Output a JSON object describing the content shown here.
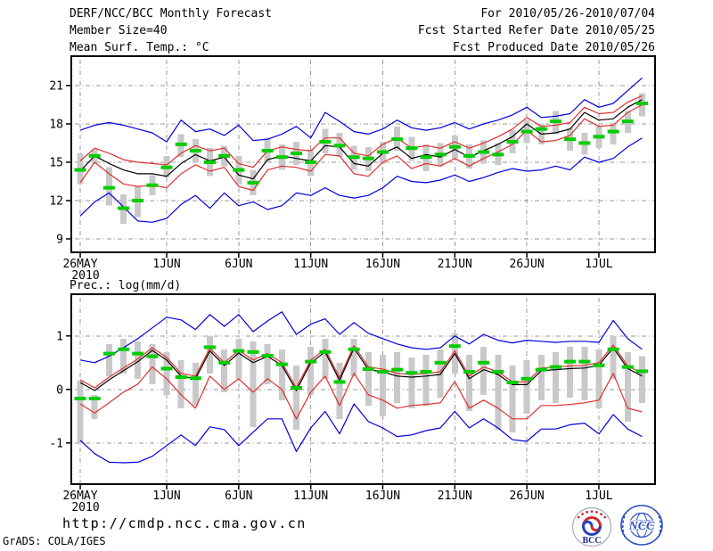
{
  "header": {
    "title": "DERF/NCC/BCC Monthly Forecast",
    "member_size": "Member Size=40",
    "for_period": "For 2010/05/26-2010/07/04",
    "fcst_started": "Fcst Started Refer Date 2010/05/25",
    "fcst_produced": "Fcst Produced Date 2010/05/26"
  },
  "footer": {
    "url": "http://cmdp.ncc.cma.gov.cn",
    "credit": "GrADS: COLA/IGES",
    "logos": {
      "bcc": "BCC",
      "ncc": "NCC"
    }
  },
  "palette": {
    "minmax": "#0000dd",
    "spread": "#e03030",
    "mean": "#000000",
    "obs_dash": "#00cc00",
    "member_bar": "#c9c9c9",
    "grid": "#999999",
    "frame": "#000000"
  },
  "chart_data": [
    {
      "id": "temp",
      "type": "line",
      "title": "Mean Surf. Temp.: °C",
      "start_date": "2010/05/26",
      "end_date": "2010/07/04",
      "n_points": 40,
      "grid": true,
      "xlim": [
        -0.62,
        39.9
      ],
      "ylim": [
        7.95,
        23.3
      ],
      "x_ticks": [
        {
          "day": 0,
          "label": "26MAY",
          "sublabel": "2010"
        },
        {
          "day": 6,
          "label": "1JUN"
        },
        {
          "day": 11,
          "label": "6JUN"
        },
        {
          "day": 16,
          "label": "11JUN"
        },
        {
          "day": 21,
          "label": "16JUN"
        },
        {
          "day": 26,
          "label": "21JUN"
        },
        {
          "day": 31,
          "label": "26JUN"
        },
        {
          "day": 36,
          "label": "1JUL"
        }
      ],
      "y_ticks": [
        {
          "value": 9,
          "label": "9"
        },
        {
          "value": 12,
          "label": "12"
        },
        {
          "value": 15,
          "label": "15"
        },
        {
          "value": 18,
          "label": "18"
        },
        {
          "value": 21,
          "label": "21"
        }
      ],
      "series": [
        {
          "name": "member-spread-bars",
          "style": "bar",
          "color_key": "member_bar",
          "lo": [
            13.3,
            14.9,
            11.6,
            10.2,
            10.7,
            12.4,
            13.8,
            15.4,
            15.0,
            13.9,
            14.7,
            13.3,
            12.4,
            15.0,
            14.4,
            14.8,
            13.9,
            15.7,
            15.4,
            14.4,
            14.3,
            14.9,
            15.9,
            15.1,
            14.3,
            14.7,
            15.3,
            14.5,
            14.9,
            14.8,
            15.7,
            16.5,
            16.4,
            17.2,
            15.9,
            15.6,
            16.1,
            16.4,
            17.3,
            18.6
          ],
          "hi": [
            15.7,
            16.0,
            14.6,
            12.5,
            13.2,
            14.0,
            15.5,
            17.2,
            16.8,
            16.1,
            16.3,
            15.5,
            14.4,
            16.9,
            16.4,
            16.6,
            16.0,
            17.6,
            17.3,
            16.3,
            16.2,
            16.6,
            17.8,
            17.0,
            16.4,
            16.5,
            17.1,
            16.4,
            16.7,
            16.5,
            17.5,
            18.3,
            18.0,
            19.0,
            17.7,
            17.3,
            17.8,
            18.1,
            19.0,
            20.4
          ]
        },
        {
          "name": "ensemble-max",
          "style": "line",
          "color_key": "minmax",
          "values": [
            17.5,
            17.9,
            18.1,
            17.9,
            17.6,
            17.3,
            16.6,
            18.3,
            17.4,
            17.6,
            17.1,
            17.9,
            16.7,
            16.8,
            17.2,
            17.8,
            16.9,
            18.9,
            18.2,
            17.4,
            17.2,
            17.6,
            18.3,
            17.7,
            17.5,
            17.7,
            18.1,
            17.6,
            18.0,
            18.3,
            18.7,
            19.3,
            18.5,
            18.6,
            18.8,
            19.9,
            19.3,
            19.6,
            20.6,
            21.6
          ]
        },
        {
          "name": "ensemble-min",
          "style": "line",
          "color_key": "minmax",
          "values": [
            10.8,
            11.9,
            12.6,
            11.5,
            10.4,
            10.3,
            10.6,
            11.7,
            12.4,
            11.4,
            12.6,
            11.6,
            11.9,
            11.3,
            11.6,
            12.6,
            12.4,
            13.0,
            12.4,
            12.2,
            12.4,
            13.0,
            13.9,
            13.5,
            13.4,
            13.6,
            14.0,
            13.5,
            13.8,
            14.2,
            14.5,
            14.3,
            14.4,
            14.7,
            14.4,
            15.4,
            15.0,
            15.3,
            16.2,
            16.9
          ]
        },
        {
          "name": "spread-upper",
          "style": "line",
          "color_key": "spread",
          "values": [
            15.1,
            16.1,
            15.7,
            15.2,
            15.0,
            14.9,
            14.8,
            15.7,
            16.3,
            15.9,
            16.1,
            14.9,
            14.6,
            15.9,
            16.2,
            16.0,
            15.9,
            16.9,
            16.9,
            15.7,
            15.5,
            16.4,
            16.9,
            16.1,
            16.3,
            16.1,
            16.6,
            16.1,
            16.5,
            17.0,
            17.6,
            18.5,
            17.8,
            17.9,
            18.1,
            19.3,
            18.8,
            18.9,
            19.7,
            20.2
          ]
        },
        {
          "name": "spread-lower",
          "style": "line",
          "color_key": "spread",
          "values": [
            13.4,
            15.0,
            14.1,
            13.3,
            13.1,
            13.2,
            13.0,
            14.1,
            14.8,
            14.3,
            14.6,
            13.1,
            12.8,
            14.4,
            14.7,
            14.6,
            14.3,
            15.6,
            15.5,
            14.1,
            13.9,
            15.0,
            15.5,
            14.5,
            14.9,
            14.7,
            15.3,
            14.7,
            15.3,
            15.8,
            16.4,
            17.5,
            16.6,
            16.7,
            17.1,
            18.4,
            17.8,
            17.9,
            18.9,
            19.5
          ]
        },
        {
          "name": "ensemble-mean",
          "style": "line",
          "color_key": "mean",
          "values": [
            14.3,
            15.5,
            14.9,
            14.4,
            14.1,
            14.1,
            13.9,
            14.9,
            15.6,
            15.1,
            15.4,
            14.0,
            13.7,
            15.2,
            15.5,
            15.3,
            15.1,
            16.3,
            16.2,
            14.9,
            14.7,
            15.7,
            16.2,
            15.3,
            15.6,
            15.4,
            16.0,
            15.4,
            15.9,
            16.4,
            17.0,
            18.0,
            17.2,
            17.3,
            17.6,
            18.9,
            18.3,
            18.4,
            19.3,
            19.9
          ]
        },
        {
          "name": "obs-dashes",
          "style": "dash",
          "color_key": "obs_dash",
          "values": [
            14.4,
            15.5,
            13.0,
            11.4,
            12.0,
            13.2,
            14.6,
            16.4,
            15.9,
            15.0,
            15.5,
            14.4,
            13.4,
            15.9,
            15.4,
            15.7,
            15.0,
            16.6,
            16.3,
            15.4,
            15.3,
            15.8,
            16.8,
            16.1,
            15.4,
            15.6,
            16.2,
            15.5,
            15.8,
            15.6,
            16.6,
            17.4,
            17.6,
            18.2,
            16.8,
            16.5,
            17.0,
            17.4,
            18.2,
            19.6
          ]
        }
      ]
    },
    {
      "id": "prec",
      "type": "line",
      "title": "Prec.: log(mm/d)",
      "start_date": "2010/05/26",
      "end_date": "2010/07/04",
      "n_points": 40,
      "grid": true,
      "xlim": [
        -0.62,
        39.9
      ],
      "ylim": [
        -1.77,
        1.78
      ],
      "x_ticks": [
        {
          "day": 0,
          "label": "26MAY",
          "sublabel": "2010"
        },
        {
          "day": 6,
          "label": "1JUN"
        },
        {
          "day": 11,
          "label": "6JUN"
        },
        {
          "day": 16,
          "label": "11JUN"
        },
        {
          "day": 21,
          "label": "16JUN"
        },
        {
          "day": 26,
          "label": "21JUN"
        },
        {
          "day": 31,
          "label": "26JUN"
        },
        {
          "day": 36,
          "label": "1JUL"
        }
      ],
      "y_ticks": [
        {
          "value": -1,
          "label": "-1"
        },
        {
          "value": 0,
          "label": "0"
        },
        {
          "value": 1,
          "label": "1"
        }
      ],
      "series": [
        {
          "name": "member-spread-bars",
          "style": "bar",
          "color_key": "member_bar",
          "lo": [
            -1.0,
            -0.55,
            0.25,
            0.3,
            0.2,
            0.1,
            -0.1,
            -0.35,
            -0.3,
            0.3,
            -0.05,
            0.2,
            -0.7,
            0.1,
            -0.2,
            -0.75,
            -0.1,
            0.2,
            -0.55,
            0.25,
            -0.3,
            -0.5,
            -0.25,
            -0.35,
            -0.3,
            -0.15,
            0.3,
            -0.4,
            -0.1,
            -0.75,
            -0.8,
            -0.45,
            -0.2,
            -0.25,
            -0.15,
            -0.2,
            -0.35,
            0.2,
            -0.6,
            -0.25
          ],
          "hi": [
            0.17,
            -0.1,
            0.85,
            0.95,
            0.9,
            0.85,
            0.7,
            0.55,
            0.5,
            1.0,
            0.75,
            0.95,
            0.9,
            0.85,
            0.75,
            0.45,
            0.8,
            0.95,
            0.5,
            0.95,
            0.7,
            0.65,
            0.7,
            0.6,
            0.65,
            0.75,
            1.05,
            0.65,
            0.8,
            0.65,
            0.45,
            0.55,
            0.65,
            0.7,
            0.8,
            0.8,
            0.75,
            1.0,
            0.7,
            0.62
          ]
        },
        {
          "name": "ensemble-max",
          "style": "line",
          "color_key": "minmax",
          "values": [
            0.55,
            0.5,
            0.62,
            0.78,
            0.95,
            1.15,
            1.35,
            1.3,
            1.12,
            1.4,
            1.18,
            1.4,
            1.08,
            1.28,
            1.45,
            1.03,
            1.22,
            1.32,
            1.03,
            1.25,
            1.05,
            0.95,
            0.85,
            0.78,
            0.75,
            0.78,
            1.0,
            0.85,
            1.03,
            0.92,
            0.87,
            0.92,
            0.9,
            0.88,
            0.9,
            0.9,
            0.88,
            1.29,
            0.95,
            0.75
          ]
        },
        {
          "name": "ensemble-min",
          "style": "line",
          "color_key": "minmax",
          "values": [
            -0.95,
            -1.2,
            -1.36,
            -1.37,
            -1.36,
            -1.25,
            -1.05,
            -0.85,
            -1.05,
            -0.7,
            -0.75,
            -1.05,
            -0.8,
            -0.55,
            -0.55,
            -1.16,
            -0.72,
            -0.41,
            -0.83,
            -0.27,
            -0.6,
            -0.72,
            -0.88,
            -0.85,
            -0.77,
            -0.72,
            -0.41,
            -0.72,
            -0.55,
            -0.72,
            -0.94,
            -0.97,
            -0.74,
            -0.74,
            -0.66,
            -0.63,
            -0.83,
            -0.47,
            -0.74,
            -0.88
          ]
        },
        {
          "name": "spread-upper",
          "style": "line",
          "color_key": "spread",
          "values": [
            0.18,
            0.03,
            0.23,
            0.4,
            0.57,
            0.78,
            0.6,
            0.3,
            0.25,
            0.77,
            0.5,
            0.73,
            0.55,
            0.67,
            0.5,
            0.03,
            0.55,
            0.75,
            0.22,
            0.82,
            0.42,
            0.38,
            0.3,
            0.28,
            0.3,
            0.33,
            0.72,
            0.25,
            0.42,
            0.33,
            0.14,
            0.14,
            0.4,
            0.42,
            0.44,
            0.45,
            0.5,
            0.83,
            0.44,
            0.3
          ]
        },
        {
          "name": "spread-lower",
          "style": "line",
          "color_key": "spread",
          "values": [
            -0.27,
            -0.44,
            -0.25,
            -0.05,
            0.1,
            0.42,
            0.2,
            -0.1,
            -0.35,
            0.25,
            0.0,
            0.2,
            -0.05,
            0.2,
            0.0,
            -0.55,
            -0.05,
            0.25,
            -0.3,
            0.3,
            -0.1,
            -0.2,
            -0.35,
            -0.3,
            -0.28,
            -0.25,
            0.15,
            -0.35,
            -0.2,
            -0.35,
            -0.55,
            -0.55,
            -0.3,
            -0.3,
            -0.28,
            -0.25,
            -0.2,
            0.3,
            -0.35,
            -0.42
          ]
        },
        {
          "name": "ensemble-mean",
          "style": "line",
          "color_key": "mean",
          "values": [
            0.13,
            -0.02,
            0.18,
            0.35,
            0.52,
            0.73,
            0.55,
            0.25,
            0.2,
            0.72,
            0.45,
            0.68,
            0.5,
            0.62,
            0.45,
            -0.02,
            0.5,
            0.7,
            0.17,
            0.77,
            0.37,
            0.33,
            0.25,
            0.23,
            0.25,
            0.28,
            0.67,
            0.2,
            0.37,
            0.28,
            0.09,
            0.09,
            0.35,
            0.37,
            0.39,
            0.4,
            0.45,
            0.78,
            0.39,
            0.25
          ]
        },
        {
          "name": "obs-dashes",
          "style": "dash",
          "color_key": "obs_dash",
          "values": [
            -0.17,
            -0.17,
            0.67,
            0.75,
            0.67,
            0.62,
            0.39,
            0.23,
            0.21,
            0.79,
            0.5,
            0.72,
            0.7,
            0.63,
            0.47,
            0.03,
            0.52,
            0.7,
            0.14,
            0.75,
            0.38,
            0.33,
            0.37,
            0.31,
            0.33,
            0.5,
            0.81,
            0.33,
            0.5,
            0.33,
            0.13,
            0.2,
            0.37,
            0.42,
            0.52,
            0.52,
            0.45,
            0.75,
            0.42,
            0.34
          ]
        }
      ]
    }
  ]
}
